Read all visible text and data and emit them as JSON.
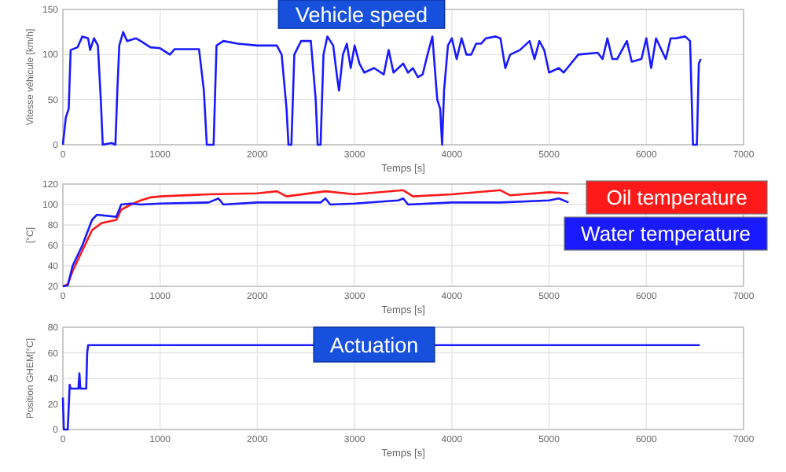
{
  "chart_data": [
    {
      "type": "line",
      "title": "Vehicle speed",
      "xlabel": "Temps [s]",
      "ylabel": "Vitesse véhicule [km/h]",
      "xlim": [
        0,
        7000
      ],
      "xticks": [
        0,
        1000,
        2000,
        3000,
        4000,
        5000,
        6000,
        7000
      ],
      "ylim": [
        0,
        150
      ],
      "yticks": [
        0,
        50,
        100,
        150
      ],
      "grid": true,
      "line_style": "solid",
      "marker": "none",
      "series": [
        {
          "color": "#1a1aff",
          "x": [
            0,
            30,
            60,
            80,
            150,
            200,
            260,
            280,
            320,
            360,
            390,
            410,
            500,
            540,
            560,
            580,
            620,
            660,
            750,
            800,
            900,
            1000,
            1100,
            1150,
            1300,
            1400,
            1450,
            1480,
            1550,
            1580,
            1650,
            1800,
            2000,
            2200,
            2250,
            2300,
            2320,
            2350,
            2380,
            2450,
            2550,
            2600,
            2620,
            2650,
            2680,
            2720,
            2780,
            2820,
            2840,
            2880,
            2920,
            2960,
            3000,
            3050,
            3100,
            3200,
            3300,
            3350,
            3400,
            3500,
            3550,
            3600,
            3650,
            3700,
            3750,
            3800,
            3850,
            3880,
            3900,
            3920,
            3960,
            4000,
            4050,
            4100,
            4150,
            4200,
            4250,
            4300,
            4350,
            4450,
            4500,
            4550,
            4600,
            4700,
            4800,
            4850,
            4900,
            4950,
            5000,
            5100,
            5150,
            5300,
            5500,
            5550,
            5600,
            5650,
            5700,
            5800,
            5850,
            5950,
            6000,
            6050,
            6100,
            6200,
            6250,
            6300,
            6400,
            6450,
            6480,
            6520,
            6540,
            6560
          ],
          "values": [
            0,
            30,
            40,
            105,
            108,
            120,
            118,
            105,
            118,
            110,
            50,
            0,
            2,
            0,
            60,
            110,
            125,
            115,
            118,
            115,
            108,
            107,
            100,
            106,
            106,
            106,
            60,
            0,
            0,
            110,
            115,
            112,
            110,
            110,
            100,
            40,
            0,
            0,
            100,
            115,
            115,
            50,
            0,
            0,
            100,
            120,
            110,
            75,
            60,
            100,
            112,
            85,
            110,
            90,
            80,
            85,
            78,
            105,
            80,
            90,
            80,
            85,
            75,
            78,
            100,
            120,
            50,
            40,
            0,
            60,
            110,
            118,
            95,
            118,
            100,
            100,
            112,
            112,
            118,
            120,
            118,
            85,
            100,
            105,
            115,
            95,
            115,
            105,
            80,
            85,
            80,
            100,
            102,
            95,
            118,
            95,
            95,
            115,
            92,
            95,
            118,
            85,
            118,
            95,
            118,
            118,
            120,
            115,
            0,
            0,
            90,
            95
          ]
        }
      ]
    },
    {
      "type": "line",
      "xlabel": "Temps [s]",
      "ylabel": "[°C]",
      "xlim": [
        0,
        7000
      ],
      "xticks": [
        0,
        1000,
        2000,
        3000,
        4000,
        5000,
        6000,
        7000
      ],
      "ylim": [
        20,
        120
      ],
      "yticks": [
        20,
        40,
        60,
        80,
        100,
        120
      ],
      "grid": true,
      "legend": "right",
      "line_style": "solid",
      "marker": "none",
      "series": [
        {
          "name": "Oil temperature",
          "color": "#ff1a1a",
          "x": [
            0,
            50,
            100,
            200,
            300,
            400,
            550,
            600,
            700,
            800,
            900,
            1000,
            1500,
            2000,
            2200,
            2300,
            2700,
            3000,
            3500,
            3600,
            4000,
            4500,
            4600,
            5000,
            5200
          ],
          "values": [
            20,
            22,
            35,
            55,
            75,
            82,
            85,
            95,
            100,
            104,
            107,
            108,
            110,
            111,
            113,
            108,
            113,
            110,
            114,
            108,
            110,
            114,
            109,
            112,
            111
          ]
        },
        {
          "name": "Water temperature",
          "color": "#1a1aff",
          "x": [
            0,
            50,
            100,
            200,
            300,
            350,
            550,
            600,
            700,
            800,
            1000,
            1500,
            1600,
            1650,
            2000,
            2650,
            2700,
            2750,
            3000,
            3450,
            3500,
            3550,
            4000,
            4500,
            5000,
            5100,
            5200
          ],
          "values": [
            20,
            21,
            40,
            60,
            85,
            90,
            88,
            100,
            101,
            100,
            101,
            102,
            106,
            100,
            102,
            102,
            106,
            100,
            101,
            104,
            106,
            100,
            102,
            102,
            104,
            106,
            102
          ]
        }
      ]
    },
    {
      "type": "line",
      "title": "Actuation",
      "xlabel": "Temps [s]",
      "ylabel": "Position GHEM[°C]",
      "xlim": [
        0,
        7000
      ],
      "xticks": [
        0,
        1000,
        2000,
        3000,
        4000,
        5000,
        6000,
        7000
      ],
      "ylim": [
        0,
        80
      ],
      "yticks": [
        0,
        20,
        40,
        60,
        80
      ],
      "grid": true,
      "line_style": "solid",
      "marker": "none",
      "series": [
        {
          "color": "#1a1aff",
          "x": [
            0,
            10,
            50,
            70,
            80,
            160,
            170,
            180,
            240,
            250,
            260,
            6550
          ],
          "values": [
            25,
            0,
            0,
            35,
            32,
            32,
            44,
            32,
            32,
            60,
            66,
            66
          ]
        }
      ]
    }
  ]
}
